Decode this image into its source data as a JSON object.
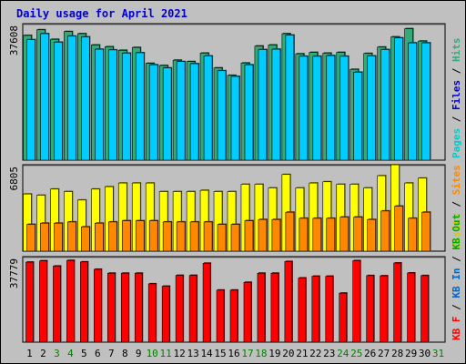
{
  "chart_data": {
    "type": "bar",
    "title": "Daily usage for April 2021",
    "x": [
      1,
      2,
      3,
      4,
      5,
      6,
      7,
      8,
      9,
      10,
      11,
      12,
      13,
      14,
      15,
      16,
      17,
      18,
      19,
      20,
      21,
      22,
      23,
      24,
      25,
      26,
      27,
      28,
      29,
      30,
      31
    ],
    "weekend_days": [
      3,
      4,
      10,
      11,
      17,
      18,
      24,
      25,
      31
    ],
    "colors": {
      "hits": "#33aa77",
      "files": "#00ccff",
      "pages": "#00ccff",
      "visits": "#ffff00",
      "sites": "#ff8800",
      "kbf": "#ff0000",
      "kbin": "#0066cc",
      "kbout": "#00aa00",
      "weekday_label": "#000000",
      "weekend_label": "#008000",
      "title": "#0000cc"
    },
    "panels": [
      {
        "id": "hits",
        "max_label": "37608",
        "ymax": 37608,
        "side_labels": [
          {
            "text": "Pages",
            "color": "#00cccc"
          },
          {
            "text": " / ",
            "color": "#000000"
          },
          {
            "text": "Files",
            "color": "#0000cc"
          },
          {
            "text": " / ",
            "color": "#000000"
          },
          {
            "text": "Hits",
            "color": "#33aa77"
          }
        ],
        "series": [
          {
            "name": "Hits",
            "color": "#33aa77",
            "values": [
              35300,
              36900,
              34200,
              36400,
              35800,
              32600,
              32100,
              31100,
              31900,
              27400,
              26800,
              28300,
              27900,
              30300,
              26100,
              24000,
              27500,
              32300,
              32600,
              35800,
              30100,
              30500,
              30300,
              30500,
              25700,
              30200,
              32000,
              34900,
              37200,
              33700,
              null
            ]
          },
          {
            "name": "Files",
            "color": "#00ccff",
            "values": [
              34100,
              35800,
              33400,
              35100,
              34900,
              31400,
              31200,
              30300,
              30400,
              27000,
              26100,
              27900,
              27300,
              29500,
              25300,
              23700,
              27000,
              31300,
              31400,
              35400,
              29400,
              29400,
              29600,
              29400,
              24900,
              29500,
              31300,
              34600,
              33200,
              33200,
              null
            ]
          }
        ]
      },
      {
        "id": "visits",
        "max_label": "6805",
        "ymax": 6805,
        "side_labels": [
          {
            "text": "Visits",
            "color": "#cccc00"
          },
          {
            "text": " / ",
            "color": "#000000"
          },
          {
            "text": "Sites",
            "color": "#ff8800"
          }
        ],
        "series": [
          {
            "name": "Visits",
            "color": "#ffff00",
            "values": [
              4700,
              4600,
              5100,
              4900,
              4200,
              5100,
              5300,
              5600,
              5600,
              5600,
              4900,
              4900,
              4900,
              5000,
              4900,
              4900,
              5500,
              5500,
              5200,
              6300,
              5200,
              5600,
              5700,
              5500,
              5500,
              5200,
              6200,
              7100,
              5600,
              6000,
              null
            ]
          },
          {
            "name": "Sites",
            "color": "#ff8800",
            "values": [
              2200,
              2300,
              2300,
              2400,
              2000,
              2300,
              2400,
              2500,
              2500,
              2500,
              2400,
              2400,
              2400,
              2400,
              2200,
              2200,
              2500,
              2600,
              2600,
              3200,
              2700,
              2700,
              2700,
              2800,
              2800,
              2600,
              3300,
              3700,
              2700,
              3200,
              null
            ]
          }
        ]
      },
      {
        "id": "kbf",
        "max_label": "37779",
        "ymax": 37779,
        "side_labels": [
          {
            "text": "KB F",
            "color": "#ff0000"
          },
          {
            "text": " / ",
            "color": "#000000"
          },
          {
            "text": "KB In",
            "color": "#0066cc"
          },
          {
            "text": " / ",
            "color": "#000000"
          },
          {
            "text": "KB Out",
            "color": "#00aa00"
          }
        ],
        "series": [
          {
            "name": "KB F",
            "color": "#ff0000",
            "values": [
              36900,
              37500,
              35100,
              37700,
              37000,
              33600,
              31800,
              31800,
              31800,
              26900,
              25800,
              30800,
              30800,
              36400,
              24000,
              24000,
              27600,
              31800,
              31800,
              37200,
              29600,
              30400,
              30400,
              22600,
              37600,
              30700,
              30600,
              36500,
              31900,
              30700,
              null
            ]
          }
        ]
      }
    ]
  }
}
